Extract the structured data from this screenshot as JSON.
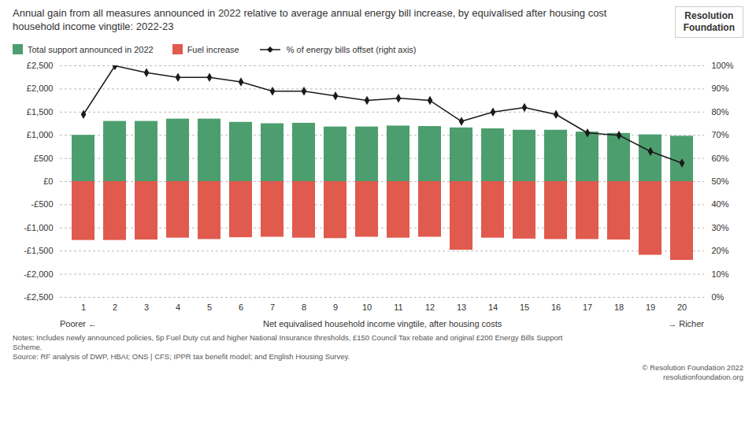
{
  "chart_data": {
    "type": "bar",
    "title": "Annual gain from all measures announced in 2022 relative to average annual energy bill increase, by equivalised after housing cost household income vingtile: 2022-23",
    "xlabel": "Net equivalised household income vingtile, after housing costs",
    "annotations": [
      "Poorer ←",
      "→ Richer"
    ],
    "notes": [
      "Notes: Includes newly announced policies, 5p Fuel Duty cut and higher National Insurance thresholds, £150 Council Tax rebate and original £200 Energy Bills Support",
      "Scheme.",
      "Source: RF analysis of DWP, HBAI; ONS | CFS; IPPR tax benefit model; and English Housing Survey."
    ],
    "credits": [
      "© Resolution Foundation 2022",
      "resolutionfoundation.org"
    ],
    "logo": [
      "Resolution",
      "Foundation"
    ],
    "categories": [
      "1",
      "2",
      "3",
      "4",
      "5",
      "6",
      "7",
      "8",
      "9",
      "10",
      "11",
      "12",
      "13",
      "14",
      "15",
      "16",
      "17",
      "18",
      "19",
      "20"
    ],
    "series": [
      {
        "name": "Total support announced in 2022",
        "type": "bar",
        "color": "#4d9e6e",
        "values": [
          1000,
          1300,
          1300,
          1350,
          1350,
          1280,
          1250,
          1260,
          1180,
          1180,
          1200,
          1190,
          1160,
          1140,
          1110,
          1110,
          1070,
          1040,
          1010,
          980
        ]
      },
      {
        "name": "Fuel increase",
        "type": "bar",
        "color": "#e05a4e",
        "values": [
          -1270,
          -1270,
          -1260,
          -1220,
          -1250,
          -1210,
          -1200,
          -1220,
          -1230,
          -1200,
          -1220,
          -1200,
          -1480,
          -1220,
          -1240,
          -1250,
          -1250,
          -1260,
          -1590,
          -1700
        ]
      },
      {
        "name": "% of energy bills offset (right axis)",
        "type": "line",
        "axis": "y2",
        "color": "#1a1a1a",
        "marker": "diamond",
        "values": [
          79,
          100,
          97,
          95,
          95,
          93,
          89,
          89,
          87,
          85,
          86,
          85,
          76,
          80,
          82,
          79,
          71,
          70,
          63,
          58
        ]
      }
    ],
    "ylim": [
      -2500,
      2500
    ],
    "yticks": [
      {
        "value": -2500,
        "label": "-£2,500"
      },
      {
        "value": -2000,
        "label": "-£2,000"
      },
      {
        "value": -1500,
        "label": "-£1,500"
      },
      {
        "value": -1000,
        "label": "-£1,000"
      },
      {
        "value": -500,
        "label": "-£500"
      },
      {
        "value": 0,
        "label": "£0"
      },
      {
        "value": 500,
        "label": "£500"
      },
      {
        "value": 1000,
        "label": "£1,000"
      },
      {
        "value": 1500,
        "label": "£1,500"
      },
      {
        "value": 2000,
        "label": "£2,000"
      },
      {
        "value": 2500,
        "label": "£2,500"
      }
    ],
    "y2lim": [
      0,
      100
    ],
    "y2ticks": [
      {
        "value": 0,
        "label": "0%"
      },
      {
        "value": 10,
        "label": "10%"
      },
      {
        "value": 20,
        "label": "20%"
      },
      {
        "value": 30,
        "label": "30%"
      },
      {
        "value": 40,
        "label": "40%"
      },
      {
        "value": 50,
        "label": "50%"
      },
      {
        "value": 60,
        "label": "60%"
      },
      {
        "value": 70,
        "label": "70%"
      },
      {
        "value": 80,
        "label": "80%"
      },
      {
        "value": 90,
        "label": "90%"
      },
      {
        "value": 100,
        "label": "100%"
      }
    ],
    "grid": true,
    "legend": "top"
  }
}
